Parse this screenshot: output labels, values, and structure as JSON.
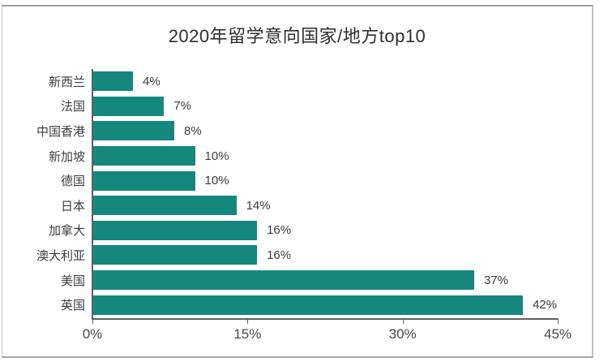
{
  "chart_data": {
    "type": "bar",
    "orientation": "horizontal",
    "title": "2020年留学意向国家/地方top10",
    "categories": [
      "新西兰",
      "法国",
      "中国香港",
      "新加坡",
      "德国",
      "日本",
      "加拿大",
      "澳大利亚",
      "美国",
      "英国"
    ],
    "values": [
      4,
      7,
      8,
      10,
      10,
      14,
      16,
      16,
      37,
      42
    ],
    "value_labels": [
      "4%",
      "7%",
      "8%",
      "10%",
      "10%",
      "14%",
      "16%",
      "16%",
      "37%",
      "42%"
    ],
    "xlabel": "",
    "ylabel": "",
    "xlim": [
      0,
      45
    ],
    "x_ticks": [
      "0%",
      "15%",
      "30%",
      "45%"
    ],
    "x_tick_values": [
      0,
      15,
      30,
      45
    ],
    "grid": false,
    "legend": false,
    "bar_color": "#15887e",
    "axis_color": "#5f5f5f",
    "text_color": "#3d3d3d",
    "frame_border_color": "#b5b5b5",
    "background_color": "#ffffff"
  }
}
